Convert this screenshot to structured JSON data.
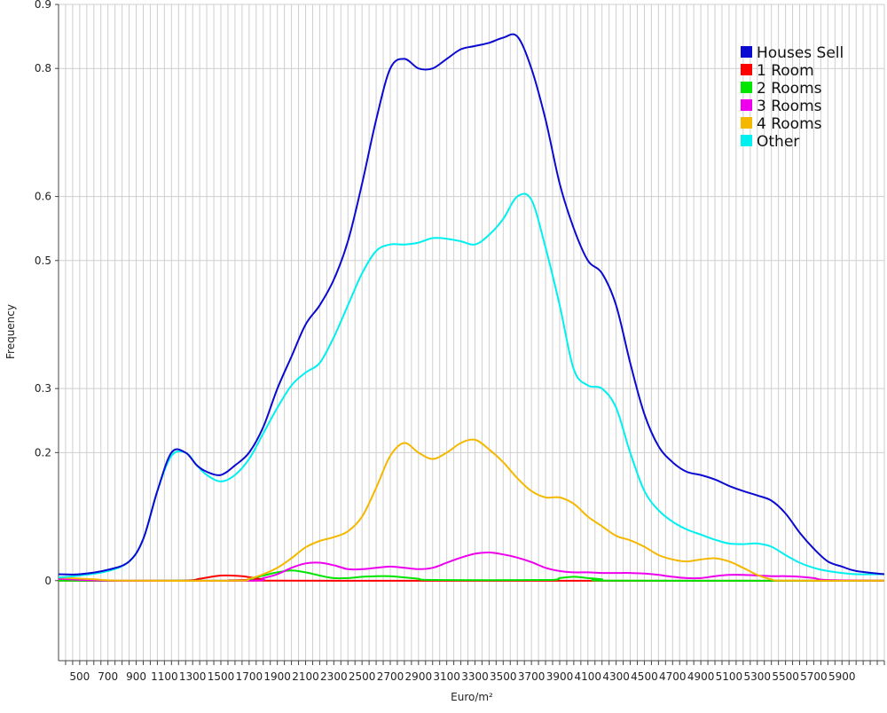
{
  "chart_data": {
    "type": "line",
    "xlabel": "Euro/m²",
    "ylabel": "Frequency",
    "xlim": [
      350,
      6200
    ],
    "ylim": [
      -0.125,
      0.9
    ],
    "grid": true,
    "legend_position": "top-right",
    "x_ticks": [
      500,
      700,
      900,
      1100,
      1300,
      1500,
      1700,
      1900,
      2100,
      2300,
      2500,
      2700,
      2900,
      3100,
      3300,
      3500,
      3700,
      3900,
      4100,
      4300,
      4500,
      4700,
      4900,
      5100,
      5300,
      5500,
      5700,
      5900
    ],
    "y_ticks": [
      0,
      0.2,
      0.3,
      0.5,
      0.6,
      0.8,
      0.9
    ],
    "y_tick_labels": [
      "0",
      "0.2",
      "0.3",
      "0.5",
      "0.6",
      "0.8",
      "0.9"
    ],
    "series": [
      {
        "name": "Houses Sell",
        "color": "#0a0ad0",
        "points": [
          [
            350,
            0.01
          ],
          [
            500,
            0.01
          ],
          [
            700,
            0.017
          ],
          [
            850,
            0.03
          ],
          [
            950,
            0.065
          ],
          [
            1050,
            0.14
          ],
          [
            1150,
            0.2
          ],
          [
            1250,
            0.2
          ],
          [
            1330,
            0.18
          ],
          [
            1400,
            0.17
          ],
          [
            1500,
            0.165
          ],
          [
            1600,
            0.18
          ],
          [
            1700,
            0.2
          ],
          [
            1800,
            0.24
          ],
          [
            1900,
            0.3
          ],
          [
            2000,
            0.35
          ],
          [
            2100,
            0.4
          ],
          [
            2200,
            0.43
          ],
          [
            2300,
            0.47
          ],
          [
            2400,
            0.53
          ],
          [
            2500,
            0.62
          ],
          [
            2600,
            0.72
          ],
          [
            2700,
            0.8
          ],
          [
            2800,
            0.815
          ],
          [
            2900,
            0.8
          ],
          [
            3000,
            0.8
          ],
          [
            3100,
            0.815
          ],
          [
            3200,
            0.83
          ],
          [
            3300,
            0.835
          ],
          [
            3400,
            0.84
          ],
          [
            3500,
            0.848
          ],
          [
            3600,
            0.85
          ],
          [
            3700,
            0.8
          ],
          [
            3800,
            0.72
          ],
          [
            3900,
            0.62
          ],
          [
            4000,
            0.55
          ],
          [
            4100,
            0.5
          ],
          [
            4200,
            0.48
          ],
          [
            4300,
            0.43
          ],
          [
            4400,
            0.34
          ],
          [
            4500,
            0.26
          ],
          [
            4600,
            0.21
          ],
          [
            4700,
            0.185
          ],
          [
            4800,
            0.17
          ],
          [
            4900,
            0.165
          ],
          [
            5000,
            0.158
          ],
          [
            5100,
            0.148
          ],
          [
            5200,
            0.14
          ],
          [
            5300,
            0.133
          ],
          [
            5400,
            0.125
          ],
          [
            5500,
            0.105
          ],
          [
            5600,
            0.075
          ],
          [
            5700,
            0.05
          ],
          [
            5800,
            0.03
          ],
          [
            5900,
            0.022
          ],
          [
            6000,
            0.015
          ],
          [
            6200,
            0.01
          ]
        ]
      },
      {
        "name": "1 Room",
        "color": "#ff0000",
        "points": [
          [
            350,
            0
          ],
          [
            1200,
            0
          ],
          [
            1350,
            0.003
          ],
          [
            1500,
            0.008
          ],
          [
            1650,
            0.007
          ],
          [
            1800,
            0.002
          ],
          [
            1900,
            0
          ],
          [
            6200,
            0
          ]
        ]
      },
      {
        "name": "2 Rooms",
        "color": "#00e600",
        "points": [
          [
            350,
            0
          ],
          [
            1600,
            0
          ],
          [
            1700,
            0.003
          ],
          [
            1800,
            0.008
          ],
          [
            1900,
            0.013
          ],
          [
            2000,
            0.016
          ],
          [
            2100,
            0.013
          ],
          [
            2200,
            0.008
          ],
          [
            2300,
            0.004
          ],
          [
            2400,
            0.004
          ],
          [
            2500,
            0.006
          ],
          [
            2600,
            0.007
          ],
          [
            2700,
            0.007
          ],
          [
            2800,
            0.005
          ],
          [
            2900,
            0.003
          ],
          [
            3000,
            0.001
          ],
          [
            3800,
            0.001
          ],
          [
            3900,
            0.004
          ],
          [
            4000,
            0.006
          ],
          [
            4100,
            0.004
          ],
          [
            4200,
            0.002
          ],
          [
            4300,
            0
          ],
          [
            6200,
            0
          ]
        ]
      },
      {
        "name": "3 Rooms",
        "color": "#ee00ee",
        "points": [
          [
            350,
            0.003
          ],
          [
            700,
            0
          ],
          [
            1700,
            0
          ],
          [
            1800,
            0.004
          ],
          [
            1900,
            0.01
          ],
          [
            2000,
            0.02
          ],
          [
            2100,
            0.027
          ],
          [
            2200,
            0.028
          ],
          [
            2300,
            0.024
          ],
          [
            2400,
            0.018
          ],
          [
            2500,
            0.018
          ],
          [
            2600,
            0.02
          ],
          [
            2700,
            0.022
          ],
          [
            2800,
            0.02
          ],
          [
            2900,
            0.018
          ],
          [
            3000,
            0.02
          ],
          [
            3100,
            0.028
          ],
          [
            3200,
            0.036
          ],
          [
            3300,
            0.042
          ],
          [
            3400,
            0.044
          ],
          [
            3500,
            0.041
          ],
          [
            3600,
            0.036
          ],
          [
            3700,
            0.029
          ],
          [
            3800,
            0.02
          ],
          [
            3900,
            0.015
          ],
          [
            4000,
            0.013
          ],
          [
            4100,
            0.013
          ],
          [
            4200,
            0.012
          ],
          [
            4300,
            0.012
          ],
          [
            4400,
            0.012
          ],
          [
            4500,
            0.011
          ],
          [
            4600,
            0.009
          ],
          [
            4700,
            0.006
          ],
          [
            4800,
            0.004
          ],
          [
            4900,
            0.004
          ],
          [
            5000,
            0.007
          ],
          [
            5100,
            0.009
          ],
          [
            5200,
            0.009
          ],
          [
            5300,
            0.008
          ],
          [
            5400,
            0.007
          ],
          [
            5500,
            0.007
          ],
          [
            5600,
            0.006
          ],
          [
            5700,
            0.004
          ],
          [
            5800,
            0.001
          ],
          [
            6200,
            0
          ]
        ]
      },
      {
        "name": "4 Rooms",
        "color": "#f5b800",
        "points": [
          [
            350,
            0.005
          ],
          [
            600,
            0.002
          ],
          [
            800,
            0
          ],
          [
            1600,
            0
          ],
          [
            1700,
            0.003
          ],
          [
            1800,
            0.01
          ],
          [
            1900,
            0.02
          ],
          [
            2000,
            0.035
          ],
          [
            2100,
            0.052
          ],
          [
            2200,
            0.062
          ],
          [
            2300,
            0.068
          ],
          [
            2400,
            0.077
          ],
          [
            2500,
            0.1
          ],
          [
            2600,
            0.145
          ],
          [
            2700,
            0.195
          ],
          [
            2800,
            0.215
          ],
          [
            2900,
            0.2
          ],
          [
            3000,
            0.19
          ],
          [
            3100,
            0.2
          ],
          [
            3200,
            0.215
          ],
          [
            3300,
            0.22
          ],
          [
            3400,
            0.205
          ],
          [
            3500,
            0.185
          ],
          [
            3600,
            0.16
          ],
          [
            3700,
            0.14
          ],
          [
            3800,
            0.13
          ],
          [
            3900,
            0.13
          ],
          [
            4000,
            0.12
          ],
          [
            4100,
            0.1
          ],
          [
            4200,
            0.085
          ],
          [
            4300,
            0.07
          ],
          [
            4400,
            0.063
          ],
          [
            4500,
            0.053
          ],
          [
            4600,
            0.04
          ],
          [
            4700,
            0.033
          ],
          [
            4800,
            0.03
          ],
          [
            4900,
            0.033
          ],
          [
            5000,
            0.035
          ],
          [
            5100,
            0.03
          ],
          [
            5200,
            0.02
          ],
          [
            5300,
            0.009
          ],
          [
            5400,
            0.002
          ],
          [
            5500,
            0
          ],
          [
            6200,
            0
          ]
        ]
      },
      {
        "name": "Other",
        "color": "#00f0f0",
        "points": [
          [
            350,
            0.005
          ],
          [
            500,
            0.008
          ],
          [
            700,
            0.015
          ],
          [
            850,
            0.03
          ],
          [
            950,
            0.065
          ],
          [
            1050,
            0.14
          ],
          [
            1150,
            0.195
          ],
          [
            1250,
            0.2
          ],
          [
            1330,
            0.18
          ],
          [
            1400,
            0.165
          ],
          [
            1500,
            0.155
          ],
          [
            1600,
            0.165
          ],
          [
            1700,
            0.19
          ],
          [
            1800,
            0.23
          ],
          [
            1900,
            0.27
          ],
          [
            2000,
            0.305
          ],
          [
            2100,
            0.325
          ],
          [
            2200,
            0.34
          ],
          [
            2300,
            0.38
          ],
          [
            2400,
            0.43
          ],
          [
            2500,
            0.48
          ],
          [
            2600,
            0.515
          ],
          [
            2700,
            0.525
          ],
          [
            2800,
            0.525
          ],
          [
            2900,
            0.528
          ],
          [
            3000,
            0.535
          ],
          [
            3100,
            0.534
          ],
          [
            3200,
            0.53
          ],
          [
            3300,
            0.525
          ],
          [
            3400,
            0.54
          ],
          [
            3500,
            0.565
          ],
          [
            3600,
            0.6
          ],
          [
            3700,
            0.595
          ],
          [
            3800,
            0.52
          ],
          [
            3900,
            0.43
          ],
          [
            4000,
            0.33
          ],
          [
            4100,
            0.305
          ],
          [
            4200,
            0.3
          ],
          [
            4300,
            0.27
          ],
          [
            4400,
            0.2
          ],
          [
            4500,
            0.14
          ],
          [
            4600,
            0.11
          ],
          [
            4700,
            0.092
          ],
          [
            4800,
            0.08
          ],
          [
            4900,
            0.072
          ],
          [
            5000,
            0.064
          ],
          [
            5100,
            0.058
          ],
          [
            5200,
            0.057
          ],
          [
            5300,
            0.058
          ],
          [
            5400,
            0.053
          ],
          [
            5500,
            0.04
          ],
          [
            5600,
            0.028
          ],
          [
            5700,
            0.02
          ],
          [
            5800,
            0.015
          ],
          [
            5900,
            0.012
          ],
          [
            6000,
            0.01
          ],
          [
            6200,
            0.01
          ]
        ]
      }
    ]
  }
}
